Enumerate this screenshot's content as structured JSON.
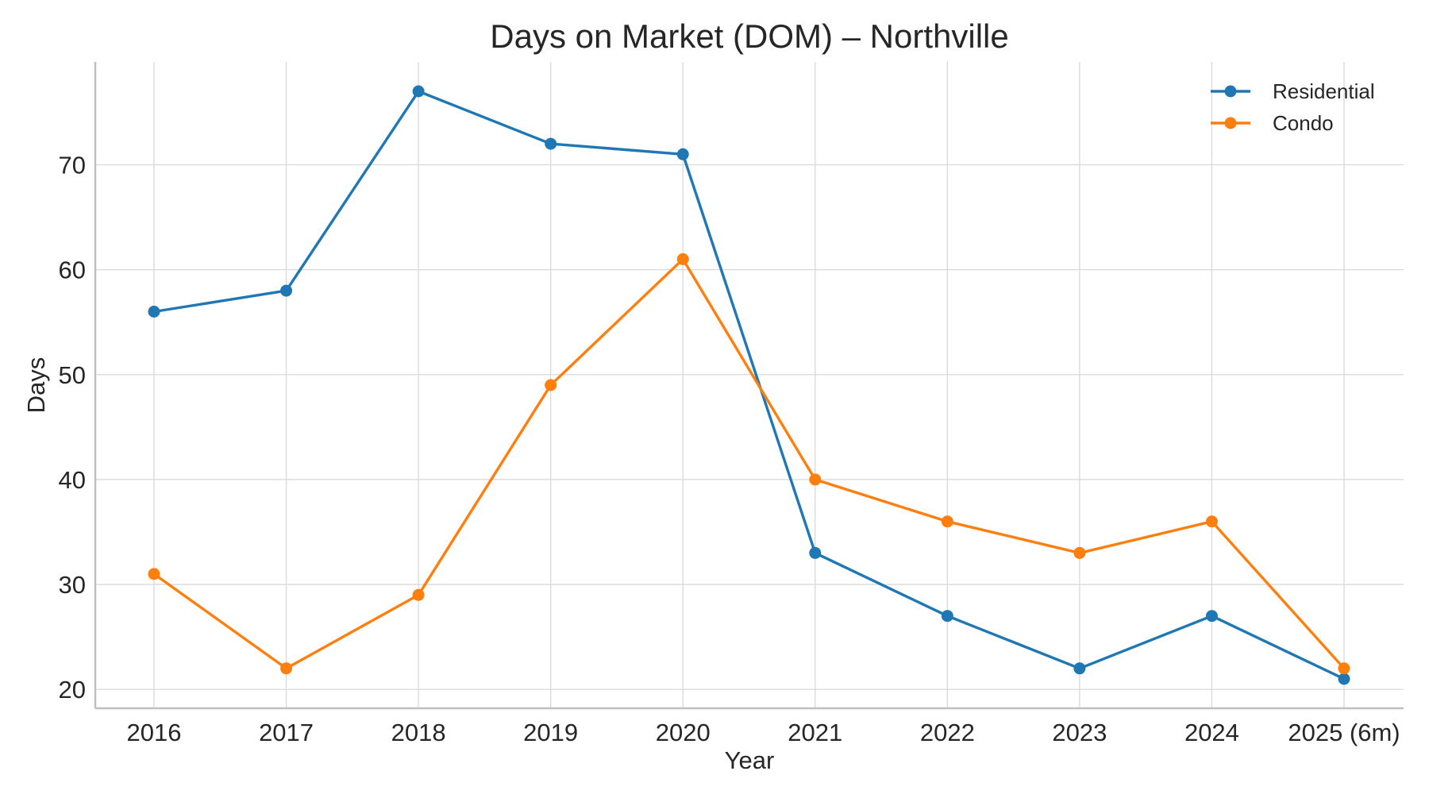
{
  "chart_data": {
    "type": "line",
    "title": "Days on Market (DOM) – Northville",
    "xlabel": "Year",
    "ylabel": "Days",
    "categories": [
      "2016",
      "2017",
      "2018",
      "2019",
      "2020",
      "2021",
      "2022",
      "2023",
      "2024",
      "2025 (6m)"
    ],
    "y_ticks": [
      20,
      30,
      40,
      50,
      60,
      70
    ],
    "y_tick_labels": [
      "20",
      "30",
      "40",
      "50",
      "60",
      "70"
    ],
    "ylim": [
      18.2,
      79.8
    ],
    "grid": true,
    "legend_position": "top-right",
    "series": [
      {
        "name": "Residential",
        "color": "#1f77b4",
        "marker": "circle",
        "values": [
          56,
          58,
          77,
          72,
          71,
          33,
          27,
          22,
          27,
          21
        ]
      },
      {
        "name": "Condo",
        "color": "#ff7f0e",
        "marker": "circle",
        "values": [
          31,
          22,
          29,
          49,
          61,
          40,
          36,
          33,
          36,
          22
        ]
      }
    ]
  }
}
